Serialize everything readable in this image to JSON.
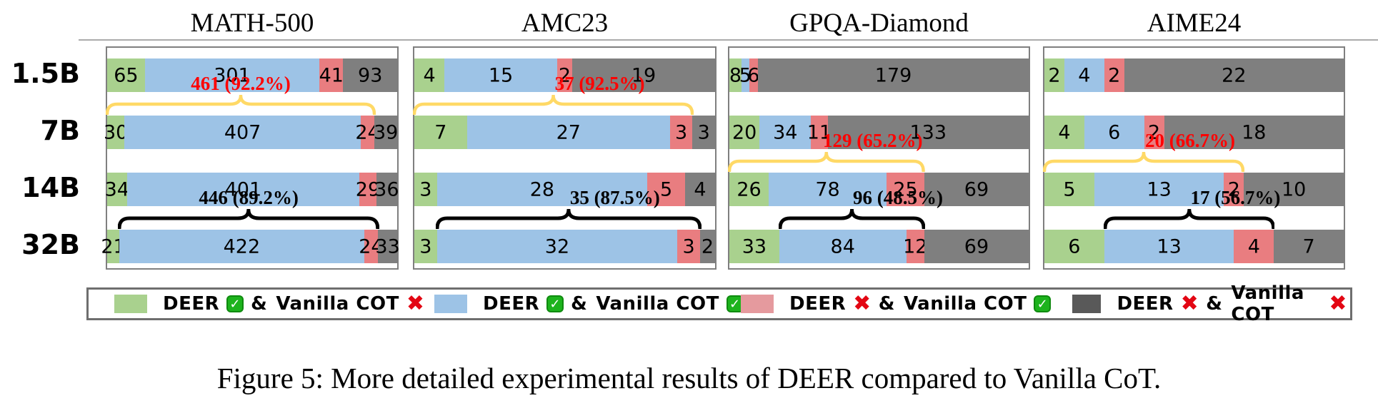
{
  "figure": {
    "caption": "Figure 5: More detailed experimental results of DEER compared to Vanilla CoT."
  },
  "row_labels": [
    "1.5B",
    "7B",
    "14B",
    "32B"
  ],
  "colors": {
    "green": "#a9d18e",
    "blue": "#9dc3e6",
    "red": "#e97d80",
    "gray": "#7f7f7f",
    "legend_red": "#e59a9e",
    "legend_gray": "#595959",
    "brace_yellow": "#ffd966",
    "brace_black": "#000000",
    "annotation_red": "#ff0000",
    "annotation_black": "#000000"
  },
  "legend": {
    "entries": [
      {
        "swatch_color_key": "green",
        "deer_word": "DEER",
        "deer_mark": "check",
        "amp": "&",
        "vanilla_word": "Vanilla COT",
        "vanilla_mark": "cross"
      },
      {
        "swatch_color_key": "blue",
        "deer_word": "DEER",
        "deer_mark": "check",
        "amp": "&",
        "vanilla_word": "Vanilla COT",
        "vanilla_mark": "check"
      },
      {
        "swatch_color_key": "legend_red",
        "deer_word": "DEER",
        "deer_mark": "cross",
        "amp": "&",
        "vanilla_word": "Vanilla COT",
        "vanilla_mark": "check"
      },
      {
        "swatch_color_key": "legend_gray",
        "deer_word": "DEER",
        "deer_mark": "cross",
        "amp": "&",
        "vanilla_word": "Vanilla COT",
        "vanilla_mark": "cross"
      }
    ]
  },
  "chart_data": [
    {
      "type": "bar",
      "stacked": true,
      "orientation": "horizontal",
      "title": "MATH-500",
      "total": 500,
      "categories": [
        "1.5B",
        "7B",
        "14B",
        "32B"
      ],
      "series": [
        {
          "name": "DEER correct & Vanilla COT wrong",
          "color_key": "green",
          "values": [
            65,
            30,
            34,
            21
          ]
        },
        {
          "name": "DEER correct & Vanilla COT correct",
          "color_key": "blue",
          "values": [
            301,
            407,
            401,
            422
          ]
        },
        {
          "name": "DEER wrong & Vanilla COT correct",
          "color_key": "red",
          "values": [
            41,
            24,
            29,
            24
          ]
        },
        {
          "name": "DEER wrong & Vanilla COT wrong",
          "color_key": "gray",
          "values": [
            93,
            39,
            36,
            33
          ]
        }
      ],
      "annotations": [
        {
          "row": 1,
          "style": "yellow",
          "label": "461 (92.2%)",
          "value": 461,
          "pct": "92.2%"
        },
        {
          "row": 3,
          "style": "black",
          "label": "446 (89.2%)",
          "value": 446,
          "pct": "89.2%"
        }
      ]
    },
    {
      "type": "bar",
      "stacked": true,
      "orientation": "horizontal",
      "title": "AMC23",
      "total": 40,
      "categories": [
        "1.5B",
        "7B",
        "14B",
        "32B"
      ],
      "series": [
        {
          "name": "DEER correct & Vanilla COT wrong",
          "color_key": "green",
          "values": [
            4,
            7,
            3,
            3
          ]
        },
        {
          "name": "DEER correct & Vanilla COT correct",
          "color_key": "blue",
          "values": [
            15,
            27,
            28,
            32
          ]
        },
        {
          "name": "DEER wrong & Vanilla COT correct",
          "color_key": "red",
          "values": [
            2,
            3,
            5,
            3
          ]
        },
        {
          "name": "DEER wrong & Vanilla COT wrong",
          "color_key": "gray",
          "values": [
            19,
            3,
            4,
            2
          ]
        }
      ],
      "annotations": [
        {
          "row": 1,
          "style": "yellow",
          "label": "37 (92.5%)",
          "value": 37,
          "pct": "92.5%"
        },
        {
          "row": 3,
          "style": "black",
          "label": "35 (87.5%)",
          "value": 35,
          "pct": "87.5%"
        }
      ]
    },
    {
      "type": "bar",
      "stacked": true,
      "orientation": "horizontal",
      "title": "GPQA-Diamond",
      "total": 198,
      "categories": [
        "1.5B",
        "7B",
        "14B",
        "32B"
      ],
      "series": [
        {
          "name": "DEER correct & Vanilla COT wrong",
          "color_key": "green",
          "values": [
            8,
            20,
            26,
            33
          ]
        },
        {
          "name": "DEER correct & Vanilla COT correct",
          "color_key": "blue",
          "values": [
            5,
            34,
            78,
            84
          ]
        },
        {
          "name": "DEER wrong & Vanilla COT correct",
          "color_key": "red",
          "values": [
            6,
            11,
            25,
            12
          ]
        },
        {
          "name": "DEER wrong & Vanilla COT wrong",
          "color_key": "gray",
          "values": [
            179,
            133,
            69,
            69
          ]
        }
      ],
      "annotations": [
        {
          "row": 2,
          "style": "yellow",
          "label": "129 (65.2%)",
          "value": 129,
          "pct": "65.2%"
        },
        {
          "row": 3,
          "style": "black",
          "label": "96 (48.5%)",
          "value": 96,
          "pct": "48.5%"
        }
      ]
    },
    {
      "type": "bar",
      "stacked": true,
      "orientation": "horizontal",
      "title": "AIME24",
      "total": 30,
      "categories": [
        "1.5B",
        "7B",
        "14B",
        "32B"
      ],
      "series": [
        {
          "name": "DEER correct & Vanilla COT wrong",
          "color_key": "green",
          "values": [
            2,
            4,
            5,
            6
          ]
        },
        {
          "name": "DEER correct & Vanilla COT correct",
          "color_key": "blue",
          "values": [
            4,
            6,
            13,
            13
          ]
        },
        {
          "name": "DEER wrong & Vanilla COT correct",
          "color_key": "red",
          "values": [
            2,
            2,
            2,
            4
          ]
        },
        {
          "name": "DEER wrong & Vanilla COT wrong",
          "color_key": "gray",
          "values": [
            22,
            18,
            10,
            7
          ]
        }
      ],
      "annotations": [
        {
          "row": 2,
          "style": "yellow",
          "label": "20 (66.7%)",
          "value": 20,
          "pct": "66.7%"
        },
        {
          "row": 3,
          "style": "black",
          "label": "17 (56.7%)",
          "value": 17,
          "pct": "56.7%"
        }
      ]
    }
  ]
}
